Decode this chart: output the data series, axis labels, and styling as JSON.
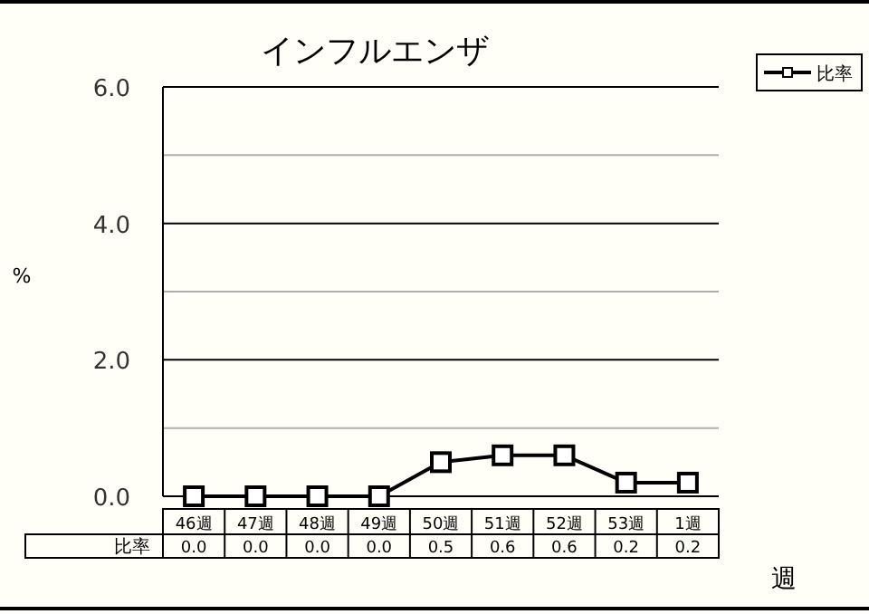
{
  "chart_data": {
    "type": "line",
    "title": "インフルエンザ",
    "ylabel": "%",
    "xlabel": "週",
    "categories": [
      "46週",
      "47週",
      "48週",
      "49週",
      "50週",
      "51週",
      "52週",
      "53週",
      "1週"
    ],
    "series": [
      {
        "name": "比率",
        "color": "#000000",
        "values": [
          0.0,
          0.0,
          0.0,
          0.0,
          0.5,
          0.6,
          0.6,
          0.2,
          0.2
        ],
        "value_labels": [
          "0.0",
          "0.0",
          "0.0",
          "0.0",
          "0.5",
          "0.6",
          "0.6",
          "0.2",
          "0.2"
        ]
      }
    ],
    "ylim": [
      0,
      6
    ],
    "yticks": [
      {
        "value": 0,
        "label": "0.0"
      },
      {
        "value": 1,
        "label": null
      },
      {
        "value": 2,
        "label": "2.0"
      },
      {
        "value": 3,
        "label": null
      },
      {
        "value": 4,
        "label": "4.0"
      },
      {
        "value": 5,
        "label": null
      },
      {
        "value": 6,
        "label": "6.0"
      }
    ],
    "grid": "y",
    "legend": "top right",
    "marker": "square",
    "line_style": "solid"
  }
}
